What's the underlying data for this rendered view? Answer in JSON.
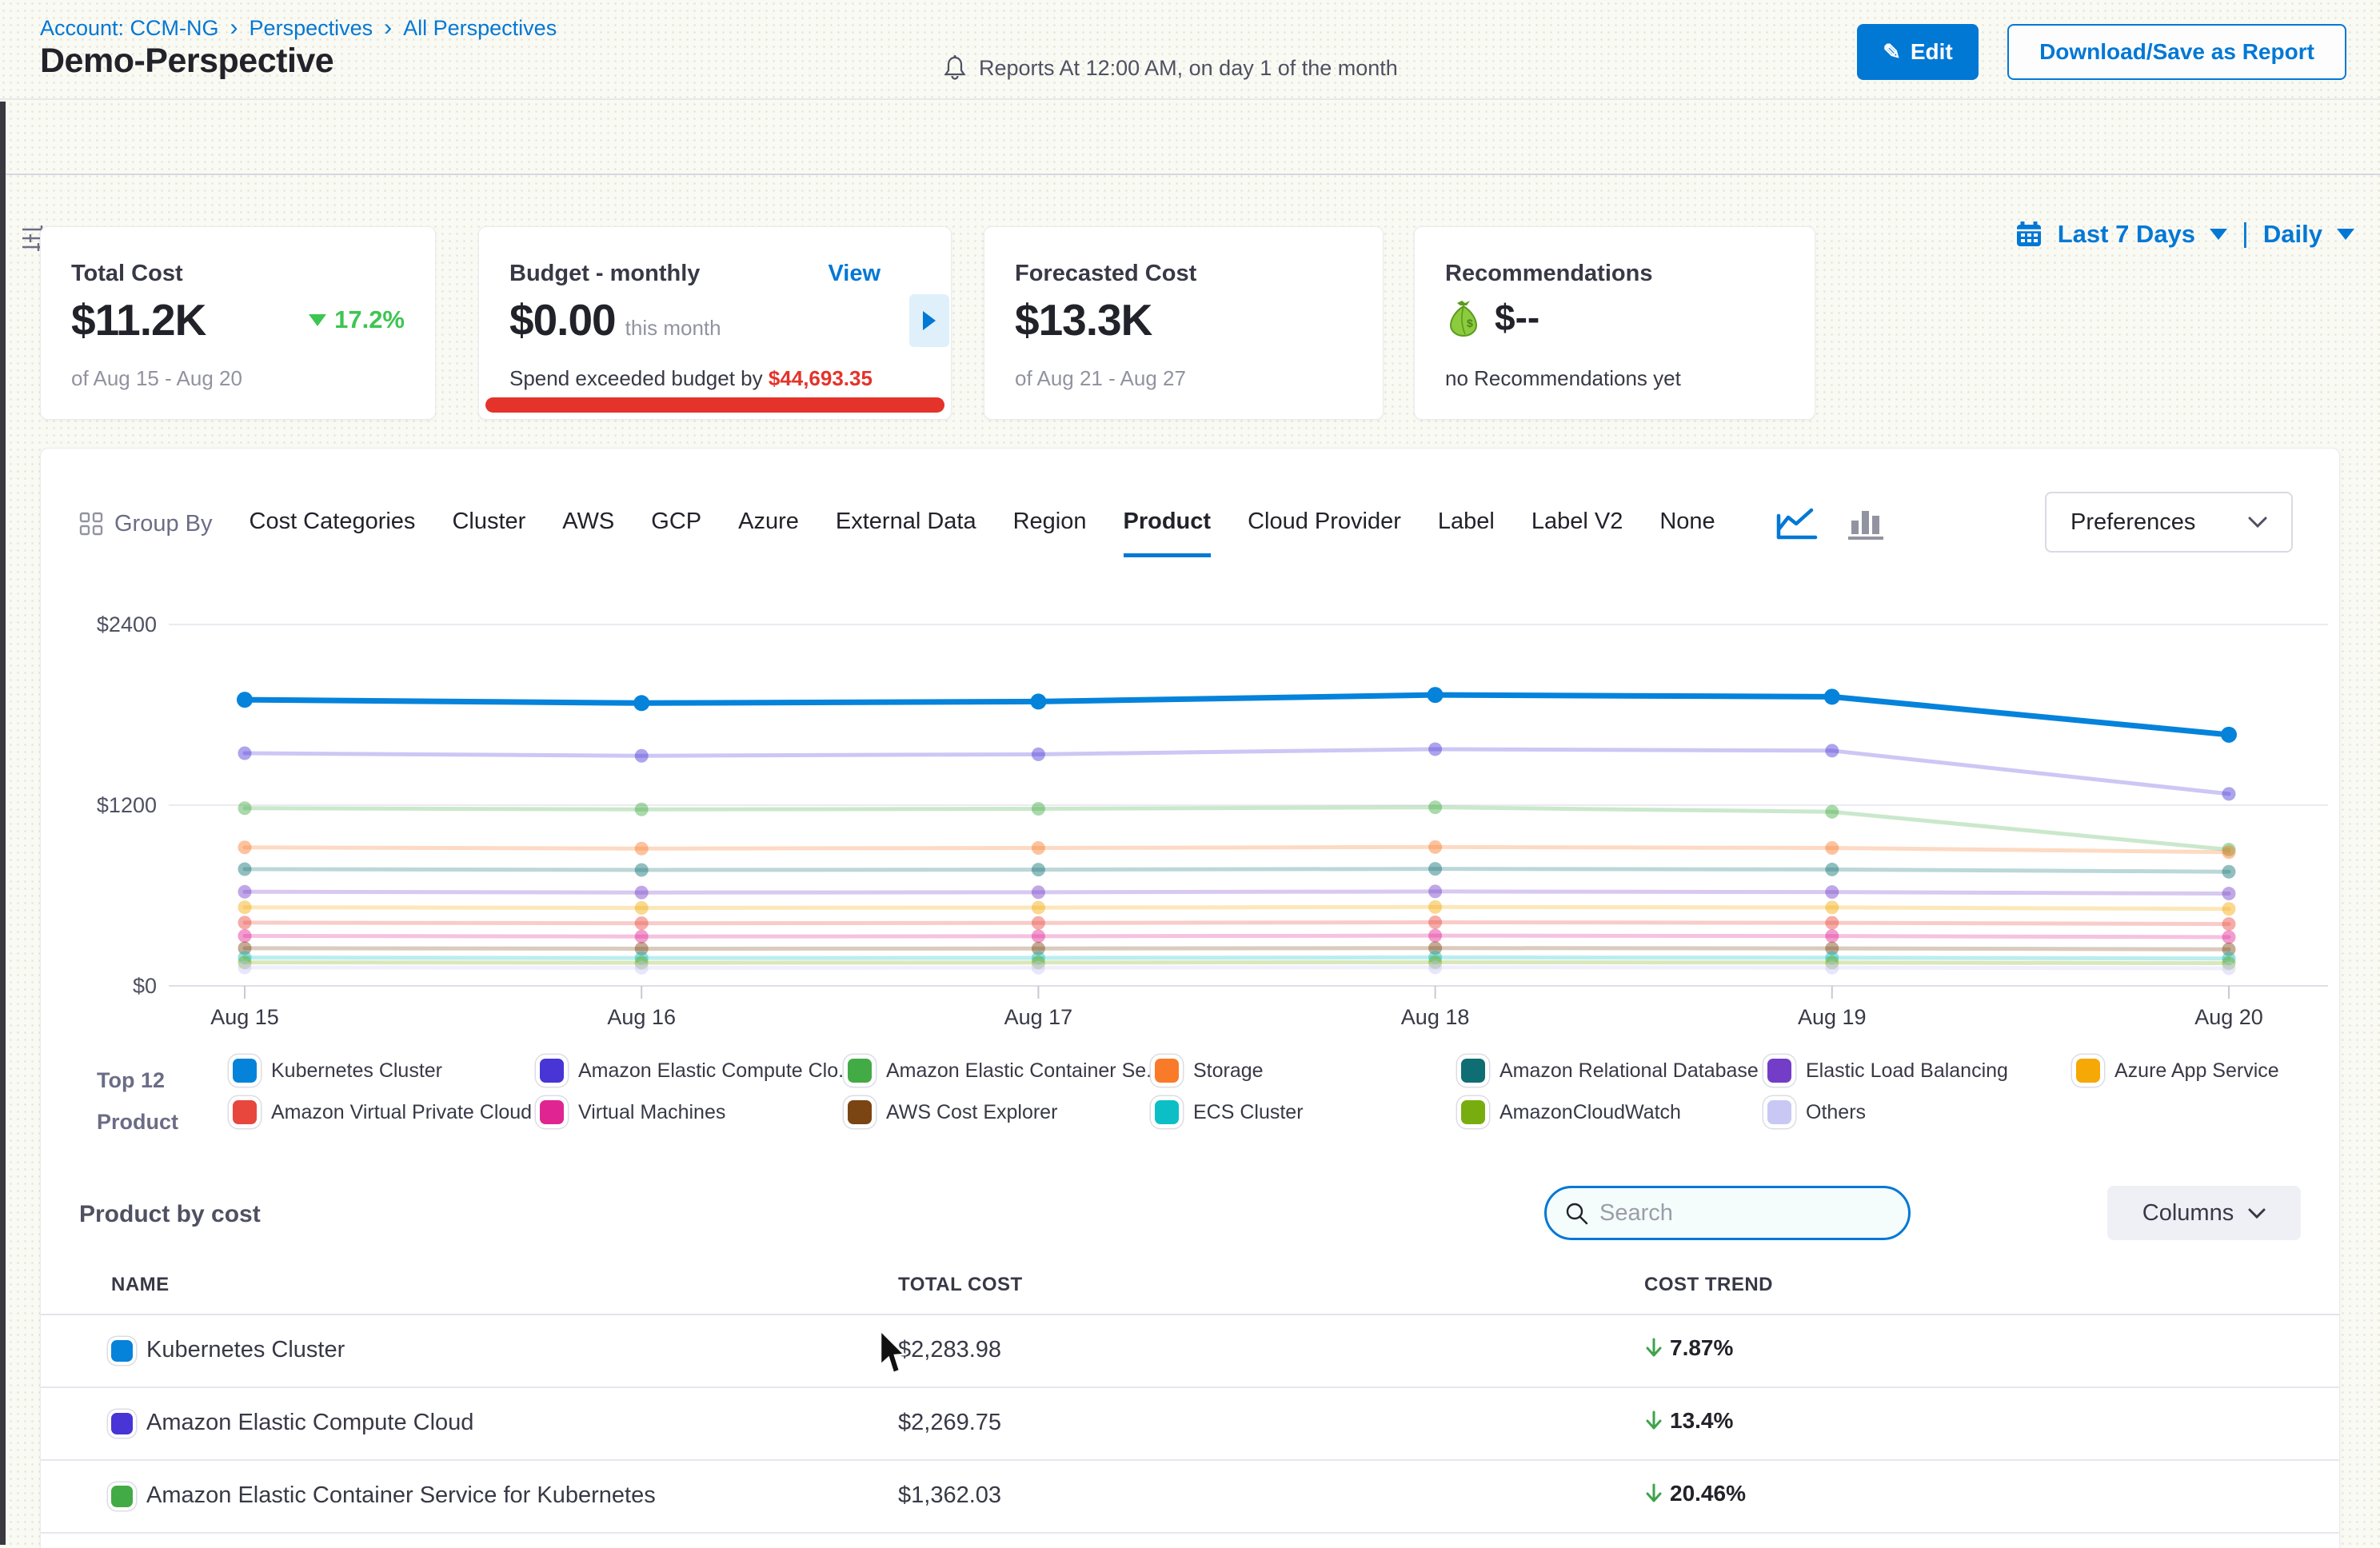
{
  "page": {
    "breadcrumb": [
      "Account: CCM-NG",
      "Perspectives",
      "All Perspectives"
    ],
    "title": "Demo-Perspective",
    "reports_note": "Reports At 12:00 AM, on day 1 of the month",
    "edit_label": "Edit",
    "download_label": "Download/Save as Report"
  },
  "filter_bar": {
    "add_filter": "+ add filter",
    "date_range": "Last 7 Days",
    "granularity": "Daily"
  },
  "cards": {
    "total_cost": {
      "label": "Total Cost",
      "value": "$11.2K",
      "trend": "17.2%",
      "period": "of Aug 15 - Aug 20"
    },
    "budget": {
      "label": "Budget - monthly",
      "view": "View",
      "value": "$0.00",
      "value_suffix": "this month",
      "warning_prefix": "Spend exceeded budget by ",
      "warning_amount": "$44,693.35"
    },
    "forecast": {
      "label": "Forecasted Cost",
      "value": "$13.3K",
      "period": "of Aug 21 - Aug 27"
    },
    "recommendations": {
      "label": "Recommendations",
      "value": "$--",
      "note": "no Recommendations yet"
    }
  },
  "group_by": {
    "label": "Group By",
    "tabs": [
      "Cost Categories",
      "Cluster",
      "AWS",
      "GCP",
      "Azure",
      "External Data",
      "Region",
      "Product",
      "Cloud Provider",
      "Label",
      "Label V2",
      "None"
    ],
    "active": "Product",
    "preferences_label": "Preferences"
  },
  "chart_data": {
    "type": "line",
    "x": [
      "Aug 15",
      "Aug 16",
      "Aug 17",
      "Aug 18",
      "Aug 19",
      "Aug 20"
    ],
    "ylim": [
      0,
      2400
    ],
    "yticks": [
      {
        "v": 0,
        "label": "$0"
      },
      {
        "v": 1200,
        "label": "$1200"
      },
      {
        "v": 2400,
        "label": "$2400"
      }
    ],
    "grid": true,
    "legend_position": "bottom",
    "series": [
      {
        "name": "Kubernetes Cluster",
        "color": "#0583DB",
        "emphasis": true,
        "values": [
          1900,
          1878,
          1888,
          1932,
          1920,
          1668
        ]
      },
      {
        "name": "Amazon Elastic Compute Clo...",
        "color": "#4735D6",
        "emphasis": false,
        "values": [
          1545,
          1528,
          1538,
          1572,
          1562,
          1275
        ]
      },
      {
        "name": "Amazon Elastic Container Se...",
        "color": "#42AB45",
        "emphasis": false,
        "values": [
          1180,
          1172,
          1176,
          1186,
          1156,
          905
        ]
      },
      {
        "name": "Storage",
        "color": "#F97B29",
        "emphasis": false,
        "values": [
          920,
          912,
          916,
          922,
          916,
          888
        ]
      },
      {
        "name": "Amazon Relational Database ...",
        "color": "#0E6E74",
        "emphasis": false,
        "values": [
          775,
          770,
          772,
          777,
          773,
          758
        ]
      },
      {
        "name": "Elastic Load Balancing",
        "color": "#733DC8",
        "emphasis": false,
        "values": [
          625,
          620,
          622,
          627,
          623,
          613
        ]
      },
      {
        "name": "Azure App Service",
        "color": "#F5A806",
        "emphasis": false,
        "values": [
          522,
          518,
          520,
          524,
          521,
          511
        ]
      },
      {
        "name": "Amazon Virtual Private Cloud",
        "color": "#E8473D",
        "emphasis": false,
        "values": [
          420,
          416,
          418,
          422,
          419,
          411
        ]
      },
      {
        "name": "Virtual Machines",
        "color": "#E02492",
        "emphasis": false,
        "values": [
          332,
          328,
          330,
          334,
          331,
          324
        ]
      },
      {
        "name": "AWS Cost Explorer",
        "color": "#7A4512",
        "emphasis": false,
        "values": [
          250,
          247,
          248,
          251,
          249,
          243
        ]
      },
      {
        "name": "ECS Cluster",
        "color": "#0CBFC7",
        "emphasis": false,
        "values": [
          188,
          185,
          186,
          189,
          187,
          182
        ]
      },
      {
        "name": "AmazonCloudWatch",
        "color": "#78AD0F",
        "emphasis": false,
        "values": [
          156,
          154,
          155,
          157,
          155,
          151
        ]
      },
      {
        "name": "Others",
        "color": "#C9C8F5",
        "emphasis": false,
        "values": [
          122,
          120,
          121,
          123,
          121,
          117
        ]
      }
    ]
  },
  "legend": {
    "title_line1": "Top 12",
    "title_line2": "Product",
    "columns": [
      [
        0,
        7
      ],
      [
        1,
        8
      ],
      [
        2,
        9
      ],
      [
        3,
        10
      ],
      [
        4,
        11
      ],
      [
        5,
        12
      ],
      [
        6
      ]
    ]
  },
  "table": {
    "section_title": "Product by cost",
    "search_placeholder": "Search",
    "columns_label": "Columns",
    "headers": [
      "NAME",
      "TOTAL COST",
      "COST TREND"
    ],
    "rows": [
      {
        "color": "#0583DB",
        "name": "Kubernetes Cluster",
        "total": "$2,283.98",
        "trend": "7.87%",
        "direction": "down"
      },
      {
        "color": "#4735D6",
        "name": "Amazon Elastic Compute Cloud",
        "total": "$2,269.75",
        "trend": "13.4%",
        "direction": "down"
      },
      {
        "color": "#42AB45",
        "name": "Amazon Elastic Container Service for Kubernetes",
        "total": "$1,362.03",
        "trend": "20.46%",
        "direction": "down"
      }
    ]
  }
}
